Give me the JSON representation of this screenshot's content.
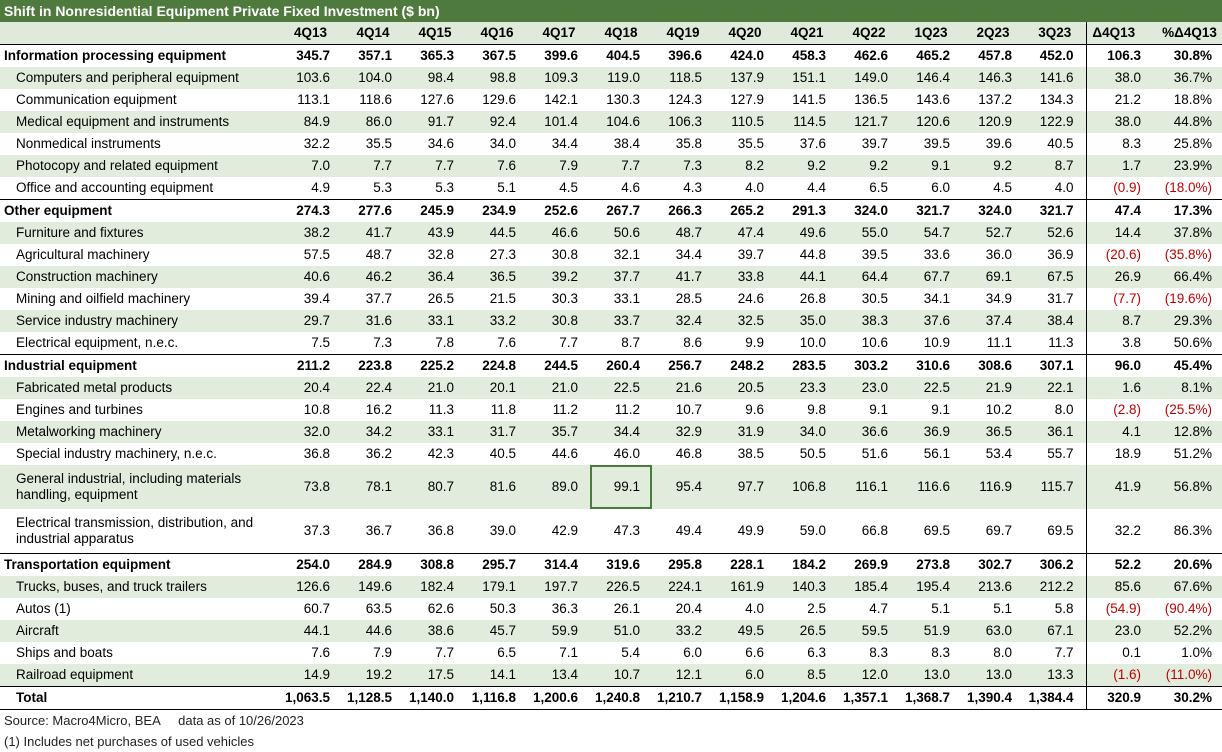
{
  "title": "Shift in Nonresidential Equipment Private Fixed Investment ($ bn)",
  "columns": [
    "4Q13",
    "4Q14",
    "4Q15",
    "4Q16",
    "4Q17",
    "4Q18",
    "4Q19",
    "4Q20",
    "4Q21",
    "4Q22",
    "1Q23",
    "2Q23",
    "3Q23",
    "Δ4Q13",
    "%Δ4Q13"
  ],
  "rows": [
    {
      "type": "group",
      "label": "Information processing equipment",
      "values": [
        "345.7",
        "357.1",
        "365.3",
        "367.5",
        "399.6",
        "404.5",
        "396.6",
        "424.0",
        "458.3",
        "462.6",
        "465.2",
        "457.8",
        "452.0",
        "106.3",
        "30.8%"
      ]
    },
    {
      "type": "item",
      "shade": true,
      "label": "Computers and peripheral equipment",
      "values": [
        "103.6",
        "104.0",
        "98.4",
        "98.8",
        "109.3",
        "119.0",
        "118.5",
        "137.9",
        "151.1",
        "149.0",
        "146.4",
        "146.3",
        "141.6",
        "38.0",
        "36.7%"
      ]
    },
    {
      "type": "item",
      "shade": false,
      "label": "Communication equipment",
      "values": [
        "113.1",
        "118.6",
        "127.6",
        "129.6",
        "142.1",
        "130.3",
        "124.3",
        "127.9",
        "141.5",
        "136.5",
        "143.6",
        "137.2",
        "134.3",
        "21.2",
        "18.8%"
      ]
    },
    {
      "type": "item",
      "shade": true,
      "label": "Medical equipment and instruments",
      "values": [
        "84.9",
        "86.0",
        "91.7",
        "92.4",
        "101.4",
        "104.6",
        "106.3",
        "110.5",
        "114.5",
        "121.7",
        "120.6",
        "120.9",
        "122.9",
        "38.0",
        "44.8%"
      ]
    },
    {
      "type": "item",
      "shade": false,
      "label": "Nonmedical instruments",
      "values": [
        "32.2",
        "35.5",
        "34.6",
        "34.0",
        "34.4",
        "38.4",
        "35.8",
        "35.5",
        "37.6",
        "39.7",
        "39.5",
        "39.6",
        "40.5",
        "8.3",
        "25.8%"
      ]
    },
    {
      "type": "item",
      "shade": true,
      "label": "Photocopy and related equipment",
      "values": [
        "7.0",
        "7.7",
        "7.7",
        "7.6",
        "7.9",
        "7.7",
        "7.3",
        "8.2",
        "9.2",
        "9.2",
        "9.1",
        "9.2",
        "8.7",
        "1.7",
        "23.9%"
      ]
    },
    {
      "type": "item",
      "shade": false,
      "label": "Office and accounting equipment",
      "values": [
        "4.9",
        "5.3",
        "5.3",
        "5.1",
        "4.5",
        "4.6",
        "4.3",
        "4.0",
        "4.4",
        "6.5",
        "6.0",
        "4.5",
        "4.0",
        "(0.9)",
        "(18.0%)"
      ],
      "neg": true
    },
    {
      "type": "group",
      "label": "Other equipment",
      "values": [
        "274.3",
        "277.6",
        "245.9",
        "234.9",
        "252.6",
        "267.7",
        "266.3",
        "265.2",
        "291.3",
        "324.0",
        "321.7",
        "324.0",
        "321.7",
        "47.4",
        "17.3%"
      ]
    },
    {
      "type": "item",
      "shade": true,
      "label": "Furniture and fixtures",
      "values": [
        "38.2",
        "41.7",
        "43.9",
        "44.5",
        "46.6",
        "50.6",
        "48.7",
        "47.4",
        "49.6",
        "55.0",
        "54.7",
        "52.7",
        "52.6",
        "14.4",
        "37.8%"
      ]
    },
    {
      "type": "item",
      "shade": false,
      "label": "Agricultural machinery",
      "values": [
        "57.5",
        "48.7",
        "32.8",
        "27.3",
        "30.8",
        "32.1",
        "34.4",
        "39.7",
        "44.8",
        "39.5",
        "33.6",
        "36.0",
        "36.9",
        "(20.6)",
        "(35.8%)"
      ],
      "neg": true
    },
    {
      "type": "item",
      "shade": true,
      "label": "Construction machinery",
      "values": [
        "40.6",
        "46.2",
        "36.4",
        "36.5",
        "39.2",
        "37.7",
        "41.7",
        "33.8",
        "44.1",
        "64.4",
        "67.7",
        "69.1",
        "67.5",
        "26.9",
        "66.4%"
      ]
    },
    {
      "type": "item",
      "shade": false,
      "label": "Mining and oilfield machinery",
      "values": [
        "39.4",
        "37.7",
        "26.5",
        "21.5",
        "30.3",
        "33.1",
        "28.5",
        "24.6",
        "26.8",
        "30.5",
        "34.1",
        "34.9",
        "31.7",
        "(7.7)",
        "(19.6%)"
      ],
      "neg": true
    },
    {
      "type": "item",
      "shade": true,
      "label": "Service industry machinery",
      "values": [
        "29.7",
        "31.6",
        "33.1",
        "33.2",
        "30.8",
        "33.7",
        "32.4",
        "32.5",
        "35.0",
        "38.3",
        "37.6",
        "37.4",
        "38.4",
        "8.7",
        "29.3%"
      ]
    },
    {
      "type": "item",
      "shade": false,
      "label": "Electrical equipment, n.e.c.",
      "values": [
        "7.5",
        "7.3",
        "7.8",
        "7.6",
        "7.7",
        "8.7",
        "8.6",
        "9.9",
        "10.0",
        "10.6",
        "10.9",
        "11.1",
        "11.3",
        "3.8",
        "50.6%"
      ]
    },
    {
      "type": "group",
      "label": "Industrial equipment",
      "values": [
        "211.2",
        "223.8",
        "225.2",
        "224.8",
        "244.5",
        "260.4",
        "256.7",
        "248.2",
        "283.5",
        "303.2",
        "310.6",
        "308.6",
        "307.1",
        "96.0",
        "45.4%"
      ]
    },
    {
      "type": "item",
      "shade": true,
      "label": "Fabricated metal products",
      "values": [
        "20.4",
        "22.4",
        "21.0",
        "20.1",
        "21.0",
        "22.5",
        "21.6",
        "20.5",
        "23.3",
        "23.0",
        "22.5",
        "21.9",
        "22.1",
        "1.6",
        "8.1%"
      ]
    },
    {
      "type": "item",
      "shade": false,
      "label": "Engines and turbines",
      "values": [
        "10.8",
        "16.2",
        "11.3",
        "11.8",
        "11.2",
        "11.2",
        "10.7",
        "9.6",
        "9.8",
        "9.1",
        "9.1",
        "10.2",
        "8.0",
        "(2.8)",
        "(25.5%)"
      ],
      "neg": true
    },
    {
      "type": "item",
      "shade": true,
      "label": "Metalworking machinery",
      "values": [
        "32.0",
        "34.2",
        "33.1",
        "31.7",
        "35.7",
        "34.4",
        "32.9",
        "31.9",
        "34.0",
        "36.6",
        "36.9",
        "36.5",
        "36.1",
        "4.1",
        "12.8%"
      ]
    },
    {
      "type": "item",
      "shade": false,
      "label": "Special industry machinery, n.e.c.",
      "values": [
        "36.8",
        "36.2",
        "42.3",
        "40.5",
        "44.6",
        "46.0",
        "46.8",
        "38.5",
        "50.5",
        "51.6",
        "56.1",
        "53.4",
        "55.7",
        "18.9",
        "51.2%"
      ]
    },
    {
      "type": "item",
      "shade": true,
      "tall": true,
      "label": "General industrial, including materials handling, equipment",
      "values": [
        "73.8",
        "78.1",
        "80.7",
        "81.6",
        "89.0",
        "99.1",
        "95.4",
        "97.7",
        "106.8",
        "116.1",
        "116.6",
        "116.9",
        "115.7",
        "41.9",
        "56.8%"
      ],
      "selected": 5
    },
    {
      "type": "item",
      "shade": false,
      "tall": true,
      "label": "Electrical transmission, distribution, and industrial apparatus",
      "values": [
        "37.3",
        "36.7",
        "36.8",
        "39.0",
        "42.9",
        "47.3",
        "49.4",
        "49.9",
        "59.0",
        "66.8",
        "69.5",
        "69.7",
        "69.5",
        "32.2",
        "86.3%"
      ]
    },
    {
      "type": "group",
      "label": "Transportation equipment",
      "values": [
        "254.0",
        "284.9",
        "308.8",
        "295.7",
        "314.4",
        "319.6",
        "295.8",
        "228.1",
        "184.2",
        "269.9",
        "273.8",
        "302.7",
        "306.2",
        "52.2",
        "20.6%"
      ]
    },
    {
      "type": "item",
      "shade": true,
      "label": "Trucks, buses, and truck trailers",
      "values": [
        "126.6",
        "149.6",
        "182.4",
        "179.1",
        "197.7",
        "226.5",
        "224.1",
        "161.9",
        "140.3",
        "185.4",
        "195.4",
        "213.6",
        "212.2",
        "85.6",
        "67.6%"
      ]
    },
    {
      "type": "item",
      "shade": false,
      "label": "Autos (1)",
      "values": [
        "60.7",
        "63.5",
        "62.6",
        "50.3",
        "36.3",
        "26.1",
        "20.4",
        "4.0",
        "2.5",
        "4.7",
        "5.1",
        "5.1",
        "5.8",
        "(54.9)",
        "(90.4%)"
      ],
      "neg": true
    },
    {
      "type": "item",
      "shade": true,
      "label": "Aircraft",
      "values": [
        "44.1",
        "44.6",
        "38.6",
        "45.7",
        "59.9",
        "51.0",
        "33.2",
        "49.5",
        "26.5",
        "59.5",
        "51.9",
        "63.0",
        "67.1",
        "23.0",
        "52.2%"
      ]
    },
    {
      "type": "item",
      "shade": false,
      "label": "Ships and boats",
      "values": [
        "7.6",
        "7.9",
        "7.7",
        "6.5",
        "7.1",
        "5.4",
        "6.0",
        "6.6",
        "6.3",
        "8.3",
        "8.3",
        "8.0",
        "7.7",
        "0.1",
        "1.0%"
      ]
    },
    {
      "type": "item",
      "shade": true,
      "label": "Railroad equipment",
      "values": [
        "14.9",
        "19.2",
        "17.5",
        "14.1",
        "13.4",
        "10.7",
        "12.1",
        "6.0",
        "8.5",
        "12.0",
        "13.0",
        "13.0",
        "13.3",
        "(1.6)",
        "(11.0%)"
      ],
      "neg": true
    },
    {
      "type": "total",
      "label": "Total",
      "values": [
        "1,063.5",
        "1,128.5",
        "1,140.0",
        "1,116.8",
        "1,200.6",
        "1,240.8",
        "1,210.7",
        "1,158.9",
        "1,204.6",
        "1,357.1",
        "1,368.7",
        "1,390.4",
        "1,384.4",
        "320.9",
        "30.2%"
      ]
    }
  ],
  "footer": {
    "source": "Source: Macro4Micro, BEA     data as of 10/26/2023",
    "note": "(1) Includes net purchases of used vehicles"
  }
}
